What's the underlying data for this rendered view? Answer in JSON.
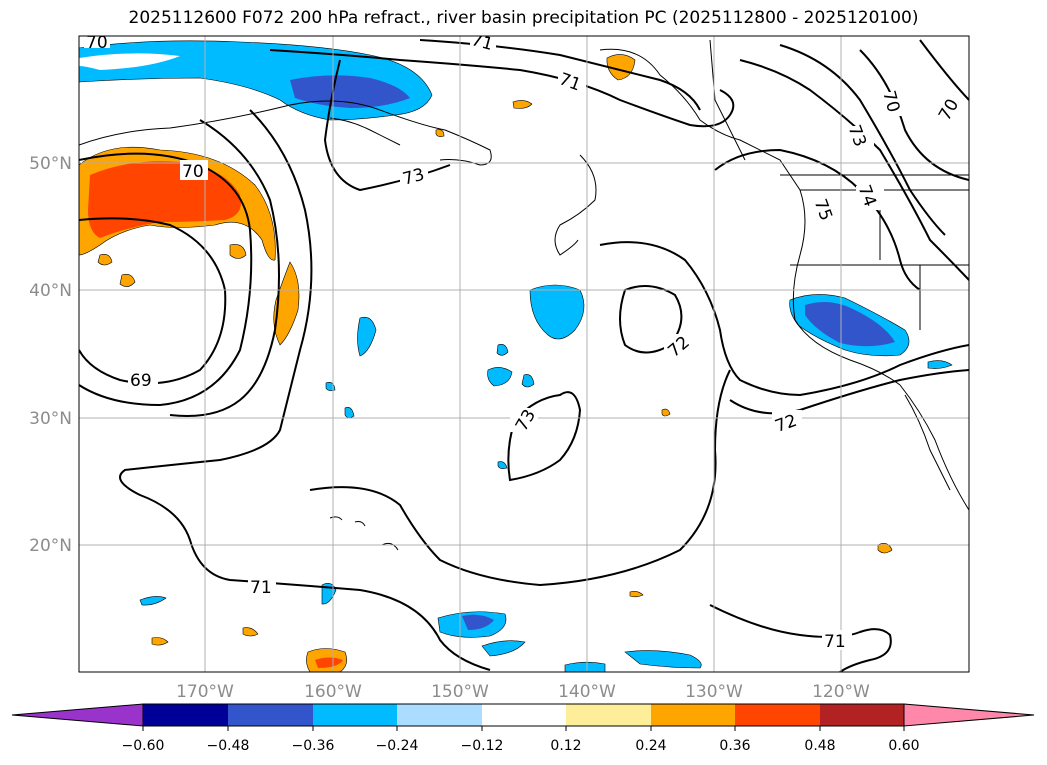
{
  "title": "2025112600 F072 200 hPa refract., river basin precipitation PC (2025112800 - 2025120100)",
  "map": {
    "lon_labels": [
      "170°W",
      "160°W",
      "150°W",
      "140°W",
      "130°W",
      "120°W"
    ],
    "lat_labels": [
      "50°N",
      "40°N",
      "30°N",
      "20°N"
    ],
    "contour_labels": [
      "70",
      "70",
      "71",
      "71",
      "70",
      "73",
      "73",
      "75",
      "74",
      "70",
      "69",
      "72",
      "73",
      "72",
      "71",
      "71"
    ]
  },
  "colorbar": {
    "colors": [
      "#9933cc",
      "#000099",
      "#3355cc",
      "#00bbff",
      "#aaddff",
      "#ffffff",
      "#ffee99",
      "#ffa500",
      "#ff4500",
      "#b22222",
      "#ff88aa"
    ],
    "ticks": [
      "−0.60",
      "−0.48",
      "−0.36",
      "−0.24",
      "−0.12",
      "0.12",
      "0.24",
      "0.36",
      "0.48",
      "0.60"
    ]
  },
  "style": {
    "contour_color": "#000000",
    "grid_color": "#b0b0b0"
  }
}
